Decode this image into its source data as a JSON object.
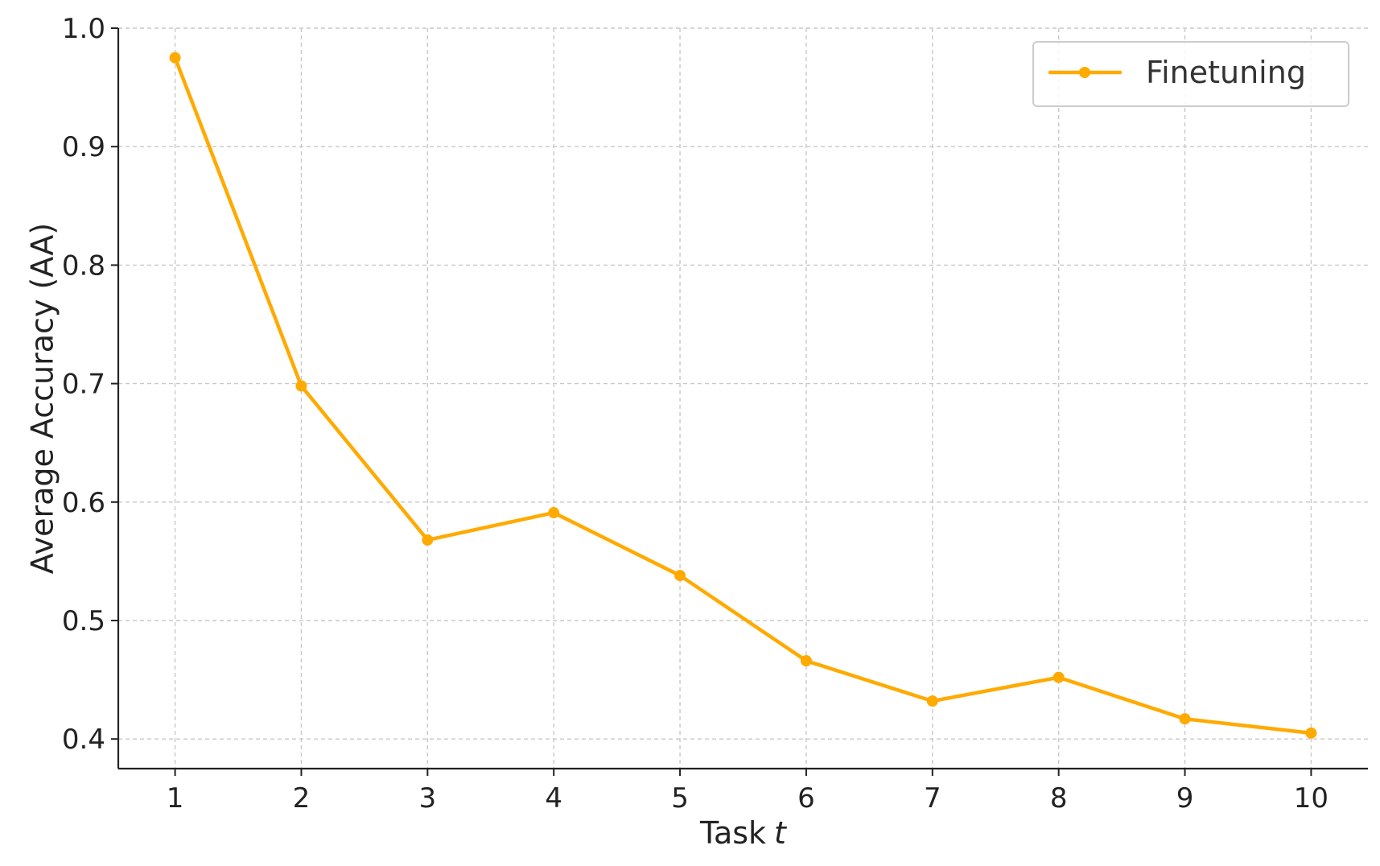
{
  "chart_data": {
    "type": "line",
    "x": [
      1,
      2,
      3,
      4,
      5,
      6,
      7,
      8,
      9,
      10
    ],
    "series": [
      {
        "name": "Finetuning",
        "values": [
          0.975,
          0.698,
          0.568,
          0.591,
          0.538,
          0.466,
          0.432,
          0.452,
          0.417,
          0.405
        ],
        "color": "#FFAA00",
        "marker": "circle"
      }
    ],
    "xlabel": "Task",
    "xlabel_var": "t",
    "ylabel": "Average Accuracy (AA)",
    "xlim": [
      0.55,
      10.45
    ],
    "ylim": [
      0.375,
      1.0
    ],
    "xticks": [
      1,
      2,
      3,
      4,
      5,
      6,
      7,
      8,
      9,
      10
    ],
    "xtick_labels": [
      "1",
      "2",
      "3",
      "4",
      "5",
      "6",
      "7",
      "8",
      "9",
      "10"
    ],
    "yticks": [
      0.4,
      0.5,
      0.6,
      0.7,
      0.8,
      0.9,
      1.0
    ],
    "ytick_labels": [
      "0.4",
      "0.5",
      "0.6",
      "0.7",
      "0.8",
      "0.9",
      "1.0"
    ],
    "grid": true,
    "legend_position": "top-right"
  }
}
